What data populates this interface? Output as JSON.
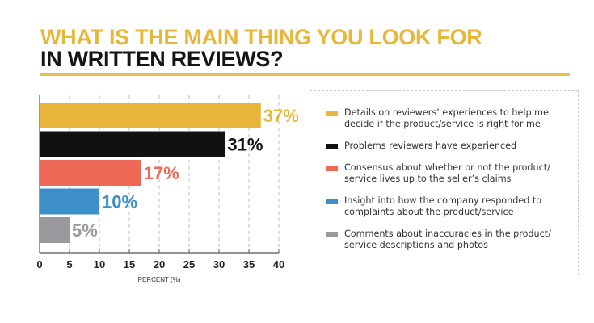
{
  "title_line1": "WHAT IS THE MAIN THING YOU LOOK FOR",
  "title_line2": "IN WRITTEN REVIEWS?",
  "chart_data": {
    "type": "bar",
    "orientation": "horizontal",
    "categories": [
      "Details on reviewers’ experiences to help me decide if the product/service is right for me",
      "Problems reviewers have experienced",
      "Consensus about whether or not the product/ service lives up to the seller’s claims",
      "Insight into how the company responded to complaints about the product/service",
      "Comments about inaccuracies in the product/ service descriptions and photos"
    ],
    "values": [
      37,
      31,
      17,
      10,
      5
    ],
    "data_labels": [
      "37%",
      "31%",
      "17%",
      "10%",
      "5%"
    ],
    "colors": [
      "#e8b63a",
      "#111111",
      "#ef6a56",
      "#3d8fc8",
      "#9a9a9e"
    ],
    "xlabel": "PERCENT (%)",
    "xlim": [
      0,
      40
    ],
    "xticks": [
      "0",
      "5",
      "10",
      "15",
      "20",
      "25",
      "30",
      "35",
      "40"
    ],
    "grid": true,
    "legend_placement": "right"
  }
}
